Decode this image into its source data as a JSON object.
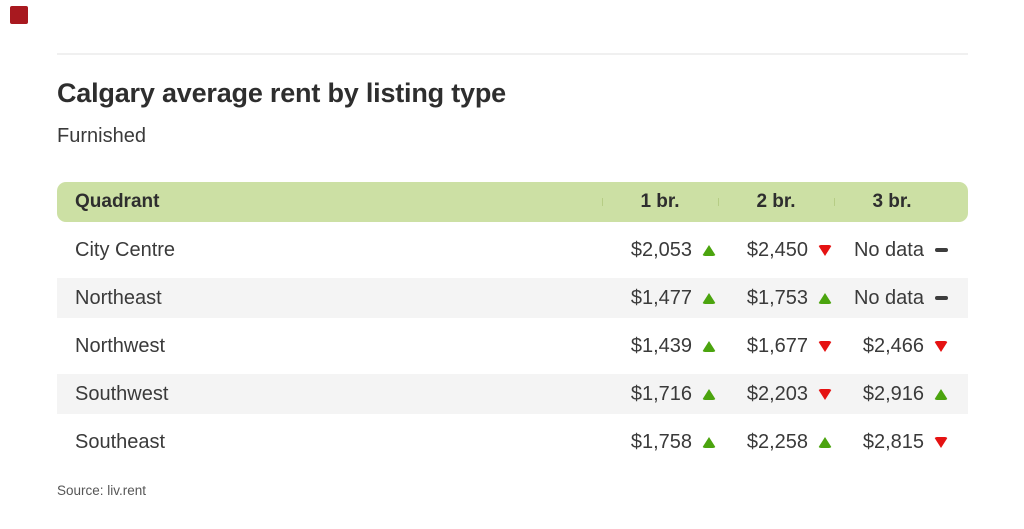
{
  "branding": {
    "logo_color": "#a8191f"
  },
  "header": {
    "title": "Calgary average rent by listing type",
    "subtitle": "Furnished"
  },
  "chart_data": {
    "type": "table",
    "title": "Calgary average rent by listing type",
    "subtitle": "Furnished",
    "columns": [
      "Quadrant",
      "1 br.",
      "2 br.",
      "3 br."
    ],
    "rows": [
      {
        "quadrant": "City Centre",
        "values": [
          {
            "text": "$2,053",
            "amount": 2053,
            "trend": "up"
          },
          {
            "text": "$2,450",
            "amount": 2450,
            "trend": "down"
          },
          {
            "text": "No data",
            "amount": null,
            "trend": "none"
          }
        ]
      },
      {
        "quadrant": "Northeast",
        "values": [
          {
            "text": "$1,477",
            "amount": 1477,
            "trend": "up"
          },
          {
            "text": "$1,753",
            "amount": 1753,
            "trend": "up"
          },
          {
            "text": "No data",
            "amount": null,
            "trend": "none"
          }
        ]
      },
      {
        "quadrant": "Northwest",
        "values": [
          {
            "text": "$1,439",
            "amount": 1439,
            "trend": "up"
          },
          {
            "text": "$1,677",
            "amount": 1677,
            "trend": "down"
          },
          {
            "text": "$2,466",
            "amount": 2466,
            "trend": "down"
          }
        ]
      },
      {
        "quadrant": "Southwest",
        "values": [
          {
            "text": "$1,716",
            "amount": 1716,
            "trend": "up"
          },
          {
            "text": "$2,203",
            "amount": 2203,
            "trend": "down"
          },
          {
            "text": "$2,916",
            "amount": 2916,
            "trend": "up"
          }
        ]
      },
      {
        "quadrant": "Southeast",
        "values": [
          {
            "text": "$1,758",
            "amount": 1758,
            "trend": "up"
          },
          {
            "text": "$2,258",
            "amount": 2258,
            "trend": "up"
          },
          {
            "text": "$2,815",
            "amount": 2815,
            "trend": "down"
          }
        ]
      }
    ],
    "legend": {
      "up": "rent increased",
      "down": "rent decreased",
      "none": "no data"
    },
    "source": "Source: liv.rent"
  },
  "colors": {
    "headerBg": "#cce0a4",
    "separator": "#b6cd85",
    "rowAlt": "#f4f4f4",
    "up": "#4ba40e",
    "down": "#e51212",
    "dash": "#3d3d3d",
    "text": "#3a3a3a",
    "titleColor": "#2e2e2e",
    "sourceColor": "#565656",
    "divider": "#f0f0f0",
    "logo": "#a8191f"
  }
}
